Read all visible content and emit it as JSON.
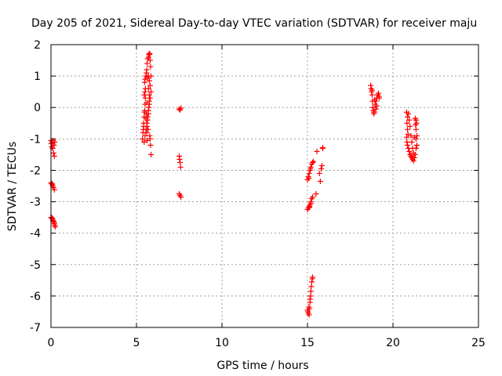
{
  "chart_data": {
    "type": "scatter",
    "title": "Day 205 of 2021, Sidereal Day-to-day VTEC variation (SDTVAR) for receiver maju",
    "xlabel": "GPS time / hours",
    "ylabel": "SDTVAR / TECUs",
    "xlim": [
      0,
      25
    ],
    "ylim": [
      -7,
      2
    ],
    "xticks": [
      0,
      5,
      10,
      15,
      20,
      25
    ],
    "yticks": [
      -7,
      -6,
      -5,
      -4,
      -3,
      -2,
      -1,
      0,
      1,
      2
    ],
    "grid": true,
    "marker": "+",
    "color": "#ff0000",
    "series": [
      {
        "name": "SDTVAR",
        "points": [
          [
            0.0,
            -1.05
          ],
          [
            0.02,
            -1.15
          ],
          [
            0.05,
            -1.25
          ],
          [
            0.08,
            -1.1
          ],
          [
            0.1,
            -1.3
          ],
          [
            0.12,
            -1.05
          ],
          [
            0.15,
            -1.45
          ],
          [
            0.18,
            -1.2
          ],
          [
            0.2,
            -1.55
          ],
          [
            0.22,
            -1.1
          ],
          [
            0.0,
            -2.4
          ],
          [
            0.05,
            -2.42
          ],
          [
            0.08,
            -2.45
          ],
          [
            0.1,
            -2.5
          ],
          [
            0.15,
            -2.55
          ],
          [
            0.2,
            -2.62
          ],
          [
            0.0,
            -3.5
          ],
          [
            0.03,
            -3.5
          ],
          [
            0.06,
            -3.52
          ],
          [
            0.1,
            -3.55
          ],
          [
            0.12,
            -3.6
          ],
          [
            0.15,
            -3.62
          ],
          [
            0.18,
            -3.65
          ],
          [
            0.2,
            -3.7
          ],
          [
            0.22,
            -3.75
          ],
          [
            0.25,
            -3.8
          ],
          [
            5.35,
            -1.0
          ],
          [
            5.4,
            -0.7
          ],
          [
            5.42,
            -0.6
          ],
          [
            5.45,
            -0.3
          ],
          [
            5.48,
            -0.1
          ],
          [
            5.5,
            0.1
          ],
          [
            5.52,
            0.3
          ],
          [
            5.5,
            0.5
          ],
          [
            5.48,
            0.8
          ],
          [
            5.5,
            0.9
          ],
          [
            5.55,
            1.0
          ],
          [
            5.6,
            1.2
          ],
          [
            5.62,
            1.4
          ],
          [
            5.65,
            1.55
          ],
          [
            5.7,
            1.6
          ],
          [
            5.72,
            1.68
          ],
          [
            5.75,
            1.72
          ],
          [
            5.78,
            1.7
          ],
          [
            5.8,
            1.5
          ],
          [
            5.82,
            1.3
          ],
          [
            5.85,
            1.0
          ],
          [
            5.8,
            0.7
          ],
          [
            5.85,
            0.5
          ],
          [
            5.8,
            0.3
          ],
          [
            5.75,
            0.1
          ],
          [
            5.7,
            -0.1
          ],
          [
            5.65,
            -0.3
          ],
          [
            5.6,
            -0.5
          ],
          [
            5.55,
            -0.7
          ],
          [
            5.5,
            -0.9
          ],
          [
            5.45,
            -1.1
          ],
          [
            5.6,
            -0.8
          ],
          [
            5.62,
            -0.6
          ],
          [
            5.65,
            -0.4
          ],
          [
            5.7,
            -0.2
          ],
          [
            5.72,
            0.0
          ],
          [
            5.75,
            0.2
          ],
          [
            5.7,
            0.6
          ],
          [
            5.75,
            0.85
          ],
          [
            5.8,
            -1.0
          ],
          [
            5.82,
            -1.2
          ],
          [
            5.85,
            -1.5
          ],
          [
            5.78,
            -0.9
          ],
          [
            5.68,
            -0.7
          ],
          [
            5.58,
            -0.2
          ],
          [
            5.52,
            0.6
          ],
          [
            5.45,
            0.4
          ],
          [
            5.42,
            -0.5
          ],
          [
            5.38,
            -0.8
          ],
          [
            5.65,
            0.95
          ],
          [
            5.7,
            1.0
          ],
          [
            5.75,
            0.4
          ],
          [
            5.6,
            0.15
          ],
          [
            5.55,
            -0.35
          ],
          [
            5.48,
            -0.15
          ],
          [
            5.58,
            1.1
          ],
          [
            5.62,
            -1.05
          ],
          [
            7.5,
            -0.05
          ],
          [
            7.55,
            -0.08
          ],
          [
            7.6,
            -0.02
          ],
          [
            7.5,
            -1.55
          ],
          [
            7.52,
            -1.65
          ],
          [
            7.55,
            -1.75
          ],
          [
            7.58,
            -1.9
          ],
          [
            7.5,
            -2.75
          ],
          [
            7.55,
            -2.8
          ],
          [
            7.6,
            -2.85
          ],
          [
            15.0,
            -6.45
          ],
          [
            15.02,
            -6.5
          ],
          [
            15.05,
            -6.55
          ],
          [
            15.1,
            -6.6
          ],
          [
            15.12,
            -6.4
          ],
          [
            15.15,
            -6.2
          ],
          [
            15.18,
            -6.0
          ],
          [
            15.2,
            -5.85
          ],
          [
            15.22,
            -5.7
          ],
          [
            15.25,
            -5.55
          ],
          [
            15.28,
            -5.45
          ],
          [
            15.3,
            -5.4
          ],
          [
            15.08,
            -6.35
          ],
          [
            15.15,
            -6.1
          ],
          [
            15.0,
            -3.25
          ],
          [
            15.05,
            -3.2
          ],
          [
            15.1,
            -3.15
          ],
          [
            15.15,
            -3.1
          ],
          [
            15.2,
            -3.0
          ],
          [
            15.25,
            -2.9
          ],
          [
            15.3,
            -2.85
          ],
          [
            15.2,
            -3.05
          ],
          [
            15.12,
            -3.18
          ],
          [
            15.0,
            -2.3
          ],
          [
            15.05,
            -2.2
          ],
          [
            15.1,
            -2.1
          ],
          [
            15.15,
            -2.0
          ],
          [
            15.2,
            -1.9
          ],
          [
            15.25,
            -1.8
          ],
          [
            15.3,
            -1.75
          ],
          [
            15.35,
            -1.72
          ],
          [
            15.08,
            -2.25
          ],
          [
            15.18,
            -1.95
          ],
          [
            15.5,
            -2.75
          ],
          [
            15.55,
            -1.4
          ],
          [
            15.7,
            -2.1
          ],
          [
            15.75,
            -2.35
          ],
          [
            15.8,
            -1.95
          ],
          [
            15.85,
            -1.85
          ],
          [
            15.88,
            -1.3
          ],
          [
            15.9,
            -1.28
          ],
          [
            18.7,
            0.7
          ],
          [
            18.72,
            0.6
          ],
          [
            18.75,
            0.5
          ],
          [
            18.78,
            0.4
          ],
          [
            18.8,
            0.2
          ],
          [
            18.82,
            0.0
          ],
          [
            18.85,
            -0.1
          ],
          [
            18.88,
            -0.2
          ],
          [
            18.9,
            -0.15
          ],
          [
            18.95,
            0.1
          ],
          [
            19.0,
            0.2
          ],
          [
            19.05,
            0.3
          ],
          [
            19.1,
            0.4
          ],
          [
            19.15,
            0.45
          ],
          [
            19.18,
            0.35
          ],
          [
            19.2,
            0.3
          ],
          [
            18.92,
            0.25
          ],
          [
            19.0,
            -0.05
          ],
          [
            19.05,
            0.05
          ],
          [
            18.78,
            0.55
          ],
          [
            20.8,
            -0.15
          ],
          [
            20.85,
            -0.3
          ],
          [
            20.82,
            -0.5
          ],
          [
            20.85,
            -0.7
          ],
          [
            20.8,
            -0.95
          ],
          [
            20.82,
            -1.1
          ],
          [
            20.85,
            -1.2
          ],
          [
            20.9,
            -1.3
          ],
          [
            20.95,
            -1.4
          ],
          [
            21.0,
            -1.5
          ],
          [
            21.05,
            -1.55
          ],
          [
            21.1,
            -1.6
          ],
          [
            21.15,
            -1.65
          ],
          [
            21.2,
            -1.7
          ],
          [
            21.25,
            -1.6
          ],
          [
            21.3,
            -1.5
          ],
          [
            21.35,
            -1.3
          ],
          [
            21.4,
            -1.2
          ],
          [
            21.35,
            -1.0
          ],
          [
            21.4,
            -0.9
          ],
          [
            21.35,
            -0.7
          ],
          [
            21.38,
            -0.5
          ],
          [
            21.35,
            -0.4
          ],
          [
            21.3,
            -0.35
          ],
          [
            20.9,
            -0.2
          ],
          [
            20.95,
            -0.4
          ],
          [
            21.0,
            -0.6
          ],
          [
            21.05,
            -0.9
          ],
          [
            21.1,
            -1.1
          ],
          [
            21.15,
            -1.3
          ],
          [
            21.2,
            -1.45
          ],
          [
            20.88,
            -0.85
          ],
          [
            21.25,
            -0.95
          ],
          [
            21.32,
            -0.55
          ]
        ]
      }
    ]
  }
}
